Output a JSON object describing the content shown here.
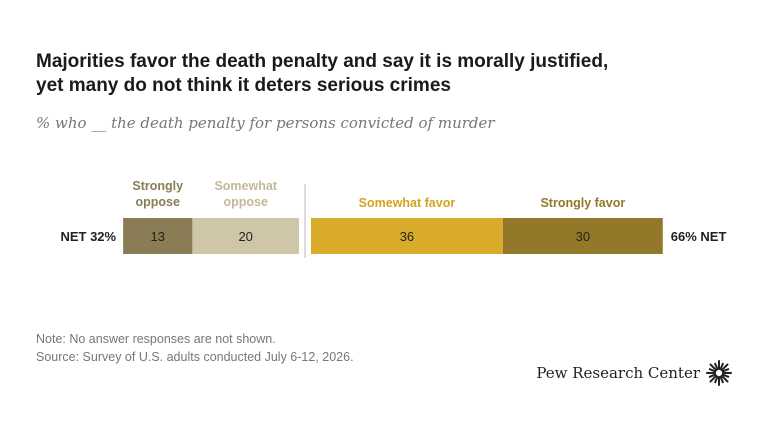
{
  "header": {
    "title_line1": "Majorities favor the death penalty and say it is morally justified,",
    "title_line2": "yet many do not think it deters serious crimes",
    "subtitle": "% who __ the death penalty for persons convicted of murder"
  },
  "chart_data": {
    "type": "bar",
    "orientation": "horizontal-diverging",
    "categories": [
      "Strongly oppose",
      "Somewhat oppose",
      "Somewhat favor",
      "Strongly favor"
    ],
    "series": [
      {
        "label_lines": [
          "Strongly",
          "oppose"
        ],
        "value": 13,
        "side": "oppose",
        "color": "#8a7d55"
      },
      {
        "label_lines": [
          "Somewhat",
          "oppose"
        ],
        "value": 20,
        "side": "oppose",
        "color": "#cfc5a7"
      },
      {
        "label_lines": [
          "Somewhat favor"
        ],
        "value": 36,
        "side": "favor",
        "color": "#d9ab2a"
      },
      {
        "label_lines": [
          "Strongly favor"
        ],
        "value": 30,
        "side": "favor",
        "color": "#94782a"
      }
    ],
    "net_oppose_label": "NET 32%",
    "net_favor_label": "66% NET"
  },
  "footer": {
    "note": "Note: No answer responses are not shown.",
    "source": "Source: Survey of U.S. adults conducted July 6-12, 2026.",
    "logo_text": "Pew Research Center"
  },
  "colors": {
    "divider": "#bbbbbb",
    "label_oppose_strong": "#8a7d55",
    "label_oppose_some": "#c4b995",
    "label_favor_some": "#d2a41e",
    "label_favor_strong": "#94782a"
  }
}
